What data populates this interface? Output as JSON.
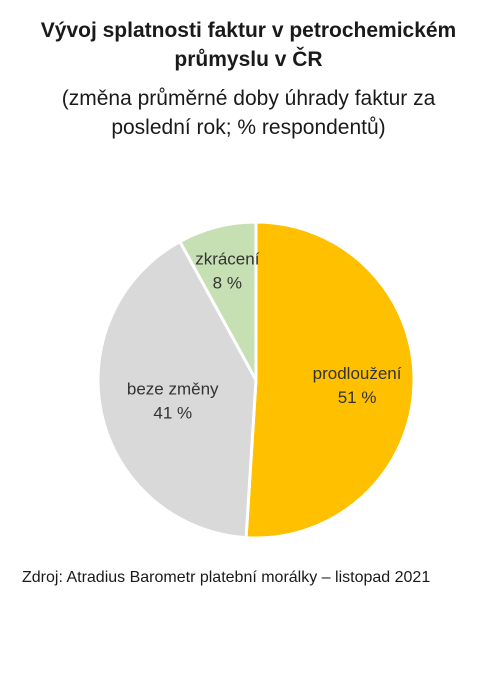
{
  "title_line1": "Vývoj splatnosti faktur v petrochemickém",
  "title_line2": "průmyslu v ČR",
  "subtitle_line1": "(změna průměrné doby úhrady faktur za",
  "subtitle_line2": "poslední rok; % respondentů)",
  "source": "Zdroj: Atradius Barometr platební morálky – listopad 2021",
  "chart_data": {
    "type": "pie",
    "title": "Vývoj splatnosti faktur v petrochemickém průmyslu v ČR",
    "subtitle": "(změna průměrné doby úhrady faktur za poslední rok; % respondentů)",
    "unit": "%",
    "slices": [
      {
        "label": "prodloužení",
        "value": 51,
        "value_label": "51 %",
        "color": "#FFC000"
      },
      {
        "label": "beze změny",
        "value": 41,
        "value_label": "41 %",
        "color": "#D9D9D9"
      },
      {
        "label": "zkrácení",
        "value": 8,
        "value_label": "8 %",
        "color": "#C6E0B4"
      }
    ],
    "legend": "none"
  }
}
